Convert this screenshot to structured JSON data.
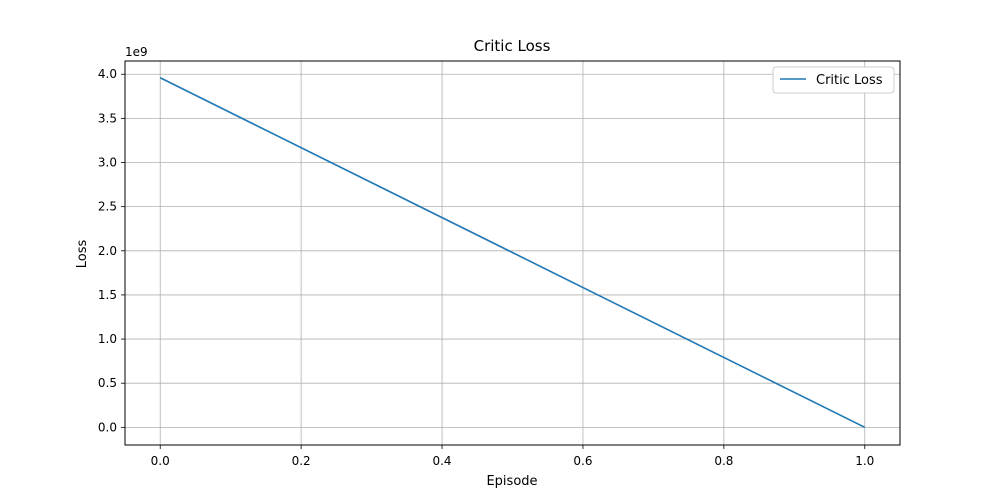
{
  "chart_data": {
    "type": "line",
    "title": "Critic Loss",
    "xlabel": "Episode",
    "ylabel": "Loss",
    "y_scale_label": "1e9",
    "xlim": [
      -0.05,
      1.05
    ],
    "ylim": [
      -0.2,
      4.15
    ],
    "x_ticks": [
      0.0,
      0.2,
      0.4,
      0.6,
      0.8,
      1.0
    ],
    "x_tick_labels": [
      "0.0",
      "0.2",
      "0.4",
      "0.6",
      "0.8",
      "1.0"
    ],
    "y_ticks": [
      0.0,
      0.5,
      1.0,
      1.5,
      2.0,
      2.5,
      3.0,
      3.5,
      4.0
    ],
    "y_tick_labels": [
      "0.0",
      "0.5",
      "1.0",
      "1.5",
      "2.0",
      "2.5",
      "3.0",
      "3.5",
      "4.0"
    ],
    "grid": true,
    "legend_position": "top-right",
    "series": [
      {
        "name": "Critic Loss",
        "color": "#1f77b4",
        "x": [
          0.0,
          1.0
        ],
        "y": [
          3.96,
          0.0
        ]
      }
    ]
  }
}
